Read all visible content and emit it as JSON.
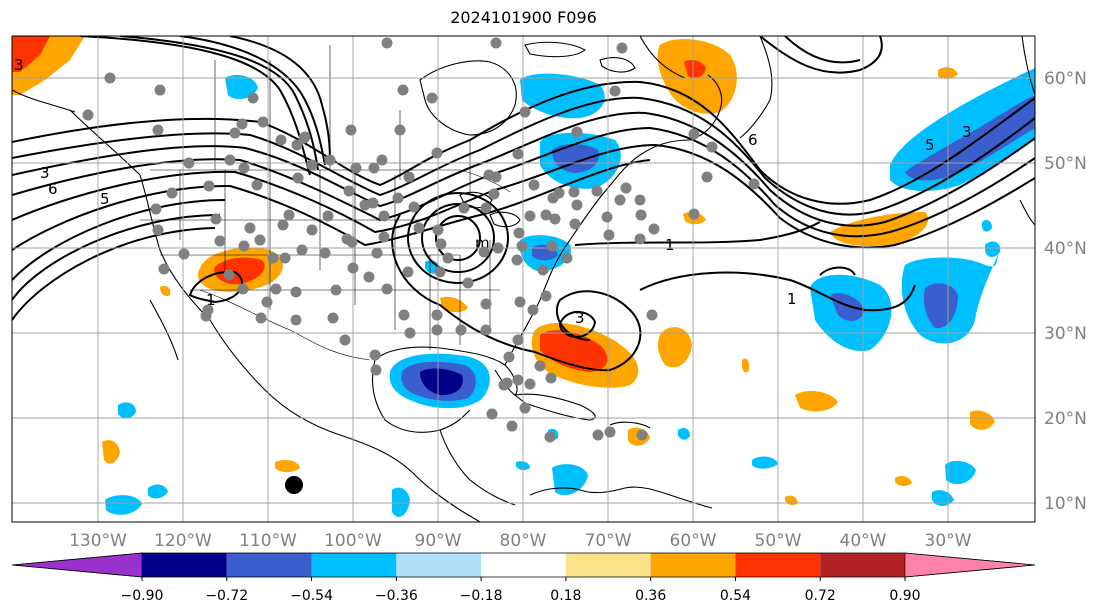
{
  "title": "2024101900 F096",
  "map": {
    "projection": "PlateCarree",
    "lon_range": [
      -142,
      -21
    ],
    "lat_range": [
      8,
      65
    ],
    "lon_labels": [
      "130°W",
      "120°W",
      "110°W",
      "100°W",
      "90°W",
      "80°W",
      "70°W",
      "60°W",
      "50°W",
      "40°W",
      "30°W"
    ],
    "lat_labels": [
      "60°N",
      "50°N",
      "40°N",
      "30°N",
      "20°N",
      "10°N"
    ],
    "gridlines": true,
    "contour_labels": [
      "6",
      "5",
      "3",
      "1",
      "1",
      "1",
      "3",
      "6",
      "5",
      "3",
      "3",
      "m"
    ]
  },
  "colorbar": {
    "ticks": [
      "−0.90",
      "−0.72",
      "−0.54",
      "−0.36",
      "−0.18",
      "0.18",
      "0.36",
      "0.54",
      "0.72",
      "0.90"
    ],
    "colors": [
      "#9932cc",
      "#00008b",
      "#3a5fcd",
      "#00bfff",
      "#afdffb",
      "#ffffff",
      "#fce38a",
      "#ffa500",
      "#ff3300",
      "#b22222",
      "#ff82ab"
    ],
    "extend": "both"
  },
  "legend_colors": {
    "station_marker": "#808080",
    "tc_marker": "#000000",
    "contour": "#000000"
  }
}
